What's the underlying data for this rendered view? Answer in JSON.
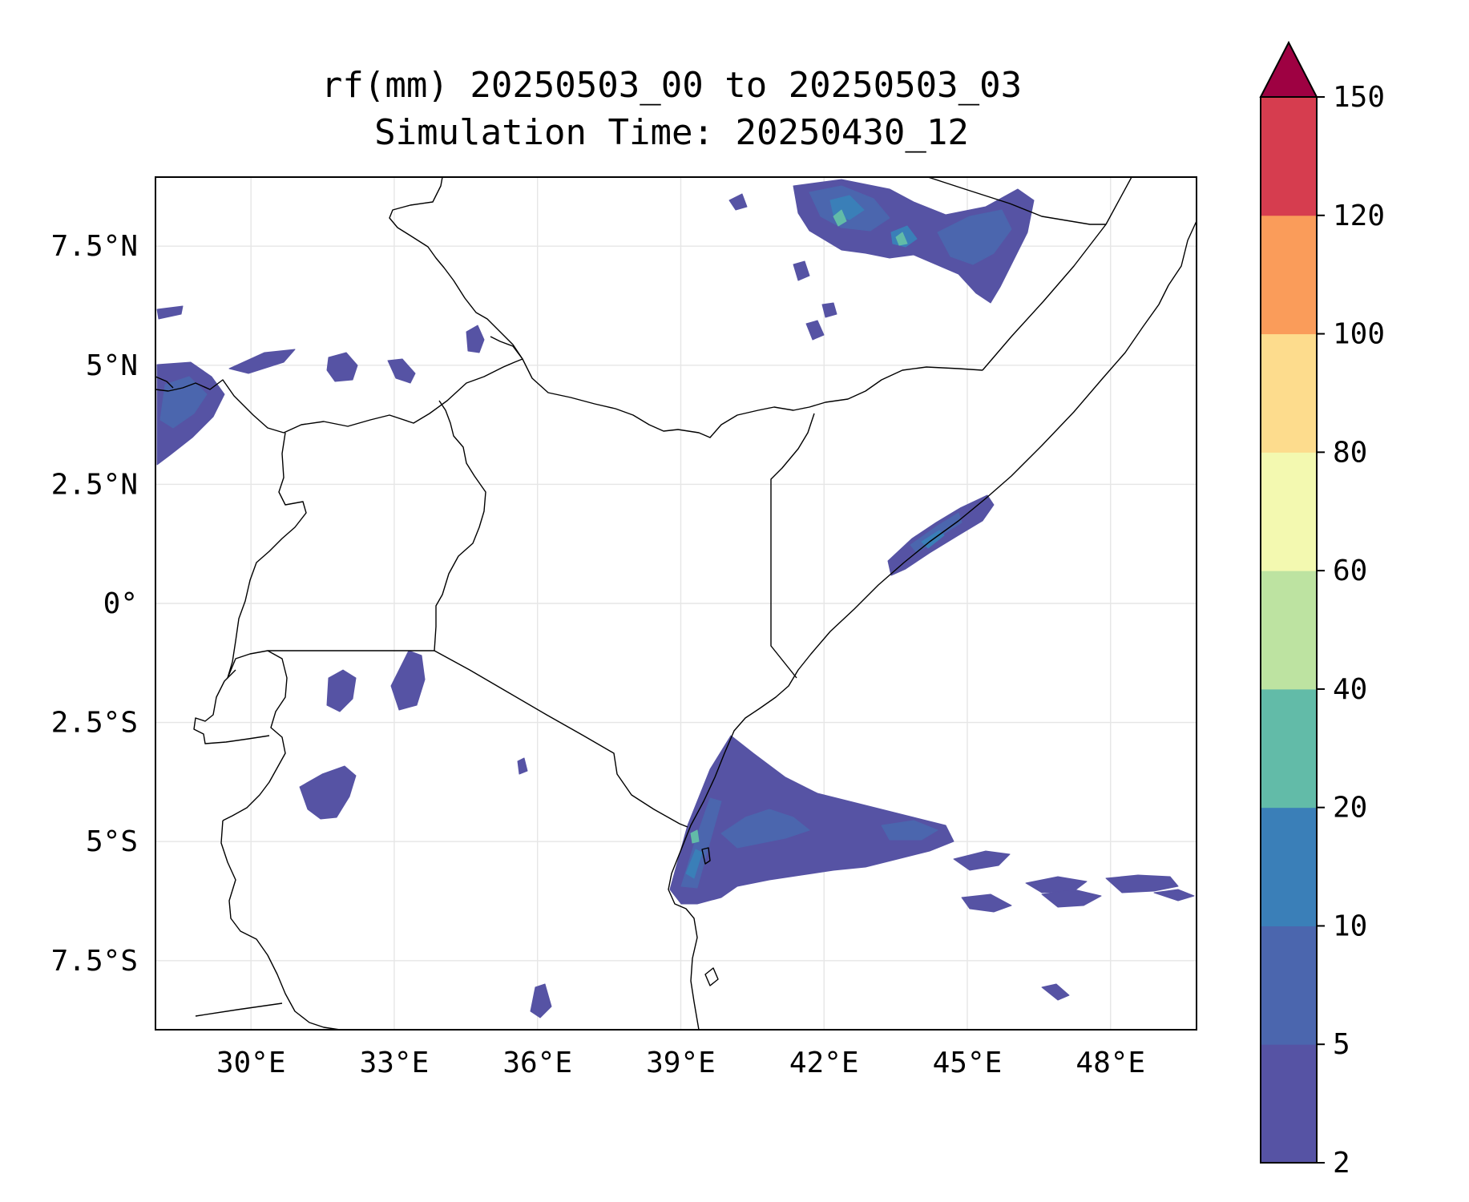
{
  "title_line1": "rf(mm) 20250503_00 to 20250503_03",
  "title_line2": "Simulation Time: 20250430_12",
  "map": {
    "lon_range": [
      28.0,
      49.8
    ],
    "lat_range": [
      -8.95,
      8.95
    ],
    "lon_ticks": [
      {
        "value": 30,
        "label": "30°E"
      },
      {
        "value": 33,
        "label": "33°E"
      },
      {
        "value": 36,
        "label": "36°E"
      },
      {
        "value": 39,
        "label": "39°E"
      },
      {
        "value": 42,
        "label": "42°E"
      },
      {
        "value": 45,
        "label": "45°E"
      },
      {
        "value": 48,
        "label": "48°E"
      }
    ],
    "lat_ticks": [
      {
        "value": 7.5,
        "label": "7.5°N"
      },
      {
        "value": 5,
        "label": "5°N"
      },
      {
        "value": 2.5,
        "label": "2.5°N"
      },
      {
        "value": 0,
        "label": "0°"
      },
      {
        "value": -2.5,
        "label": "2.5°S"
      },
      {
        "value": -5,
        "label": "5°S"
      },
      {
        "value": -7.5,
        "label": "7.5°S"
      }
    ],
    "gridlines": true
  },
  "colorbar": {
    "levels": [
      "2",
      "5",
      "10",
      "20",
      "40",
      "60",
      "80",
      "100",
      "120",
      "150"
    ],
    "colors": [
      "#5653a4",
      "#4b66ae",
      "#3a7fb8",
      "#62bba8",
      "#bde3a1",
      "#f3f9b0",
      "#fddc8d",
      "#fa9c5a",
      "#d63d4f"
    ],
    "extend_color": "#9e0142",
    "extend": "max"
  },
  "rain_colors": {
    "light": "#5653a4",
    "medium": "#4b66ae",
    "heavy": "#3a7fb8",
    "peak": "#62bba8"
  }
}
